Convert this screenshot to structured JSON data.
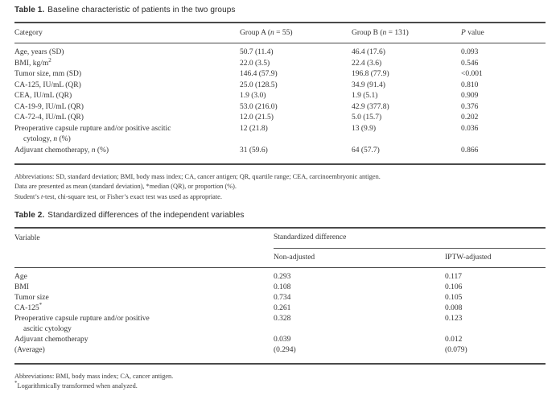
{
  "colors": {
    "text": "#333333",
    "rule": "#4a4a4a",
    "background": "#ffffff"
  },
  "table1": {
    "label": "Table 1.",
    "title": "Baseline characteristic of patients in the two groups",
    "headers": {
      "category": "Category",
      "group_a_html": "Group A (<i>n</i> = 55)",
      "group_b_html": "Group B (<i>n</i> = 131)",
      "p_value_html": "<i>P</i> value"
    },
    "rows": [
      {
        "category": "Age, years (SD)",
        "group_a": "50.7 (11.4)",
        "group_b": "46.4 (17.6)",
        "p": "0.093"
      },
      {
        "category": "BMI, kg/m<sup>2</sup>",
        "group_a": "22.0 (3.5)",
        "group_b": "22.4 (3.6)",
        "p": "0.546"
      },
      {
        "category": "Tumor size, mm (SD)",
        "group_a": "146.4 (57.9)",
        "group_b": "196.8 (77.9)",
        "p": "<0.001"
      },
      {
        "category": "CA-125, IU/mL (QR)",
        "group_a": "25.0 (128.5)",
        "group_b": "34.9 (91.4)",
        "p": "0.810"
      },
      {
        "category": "CEA, IU/mL (QR)",
        "group_a": "1.9 (3.0)",
        "group_b": "1.9 (5.1)",
        "p": "0.909"
      },
      {
        "category": "CA-19-9, IU/mL (QR)",
        "group_a": "53.0 (216.0)",
        "group_b": "42.9 (377.8)",
        "p": "0.376"
      },
      {
        "category": "CA-72-4, IU/mL (QR)",
        "group_a": "12.0 (21.5)",
        "group_b": "5.0 (15.7)",
        "p": "0.202"
      },
      {
        "category": "Preoperative capsule rupture and/or positive ascitic<br>cytology, <i>n</i> (%)",
        "group_a": "12 (21.8)",
        "group_b": "13 (9.9)",
        "p": "0.036"
      },
      {
        "category": "Adjuvant chemotherapy, <i>n</i> (%)",
        "group_a": "31 (59.6)",
        "group_b": "64 (57.7)",
        "p": "0.866"
      }
    ],
    "footnotes": [
      "Abbreviations: SD, standard deviation; BMI, body mass index; CA, cancer antigen; QR, quartile range; CEA, carcinoembryonic antigen.",
      "Data are presented as mean (standard deviation), *median (QR), or proportion (%).",
      "Student’s <i>t</i>-test, chi-square test, or Fisher’s exact test was used as appropriate."
    ]
  },
  "table2": {
    "label": "Table 2.",
    "title": "Standardized differences of the independent variables",
    "headers": {
      "variable": "Variable",
      "standardized_difference": "Standardized difference",
      "non_adjusted": "Non-adjusted",
      "iptw_adjusted": "IPTW-adjusted"
    },
    "rows": [
      {
        "variable": "Age",
        "non_adjusted": "0.293",
        "iptw_adjusted": "0.117"
      },
      {
        "variable": "BMI",
        "non_adjusted": "0.108",
        "iptw_adjusted": "0.106"
      },
      {
        "variable": "Tumor size",
        "non_adjusted": "0.734",
        "iptw_adjusted": "0.105"
      },
      {
        "variable": "CA-125<sup>*</sup>",
        "non_adjusted": "0.261",
        "iptw_adjusted": "0.008"
      },
      {
        "variable": "Preoperative capsule rupture and/or positive<br>ascitic cytology",
        "non_adjusted": "0.328",
        "iptw_adjusted": "0.123"
      },
      {
        "variable": "Adjuvant chemotherapy",
        "non_adjusted": "0.039",
        "iptw_adjusted": "0.012"
      },
      {
        "variable": "(Average)",
        "non_adjusted": "(0.294)",
        "iptw_adjusted": "(0.079)"
      }
    ],
    "footnotes": [
      "Abbreviations: BMI, body mass index; CA, cancer antigen.",
      "<sup>*</sup>Logarithmically transformed when analyzed."
    ]
  }
}
